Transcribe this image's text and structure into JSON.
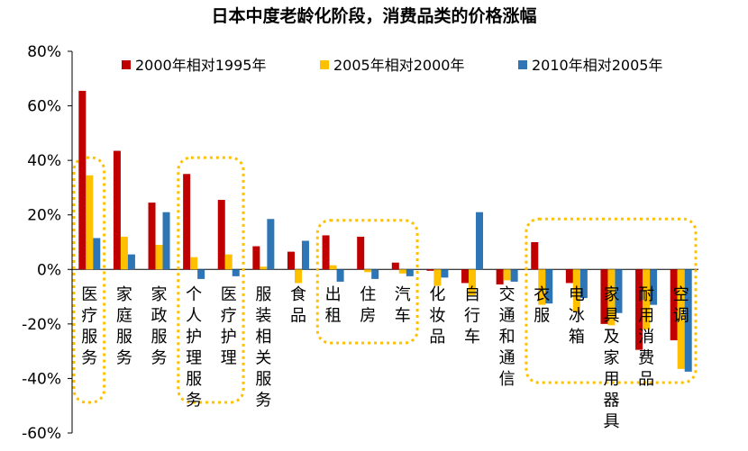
{
  "chart_data": {
    "type": "bar",
    "title": "日本中度老龄化阶段，消费品类的价格涨幅",
    "categories": [
      "医疗服务",
      "家庭服务",
      "家政服务",
      "个人护理服务",
      "医疗护理",
      "服装相关服务",
      "食品",
      "出租",
      "住房",
      "汽车",
      "化妆品",
      "自行车",
      "交通和通信",
      "衣服",
      "电冰箱",
      "家具及家用器具",
      "耐用消费品",
      "空调"
    ],
    "series": [
      {
        "name": "2000年相对1995年",
        "color": "#C00000",
        "values": [
          65.5,
          43.5,
          24.5,
          35,
          25.5,
          8.5,
          6.5,
          12.5,
          12,
          2.5,
          -0.5,
          -5,
          -5.5,
          10,
          -5,
          -20,
          -29.5,
          -26
        ]
      },
      {
        "name": "2005年相对2000年",
        "color": "#FFC000",
        "values": [
          34.5,
          12,
          9,
          4.5,
          5.5,
          1,
          -5,
          1.5,
          -1,
          -1.5,
          -6,
          -9.5,
          -4,
          -13,
          -15.5,
          -20.5,
          -22,
          -36.5
        ]
      },
      {
        "name": "2010年相对2005年",
        "color": "#2E75B6",
        "values": [
          11.5,
          5.5,
          21,
          -3.5,
          -2.5,
          18.5,
          10.5,
          -4.5,
          -3.5,
          -2.5,
          -3,
          21,
          -4.5,
          -12.5,
          -10.5,
          -16,
          -13,
          -37.5
        ]
      }
    ],
    "yticks": [
      "80%",
      "60%",
      "40%",
      "20%",
      "0%",
      "-20%",
      "-40%",
      "-60%"
    ],
    "ylim": [
      -60,
      80
    ],
    "legend_position": "top"
  },
  "highlight_color": "#FFC000"
}
